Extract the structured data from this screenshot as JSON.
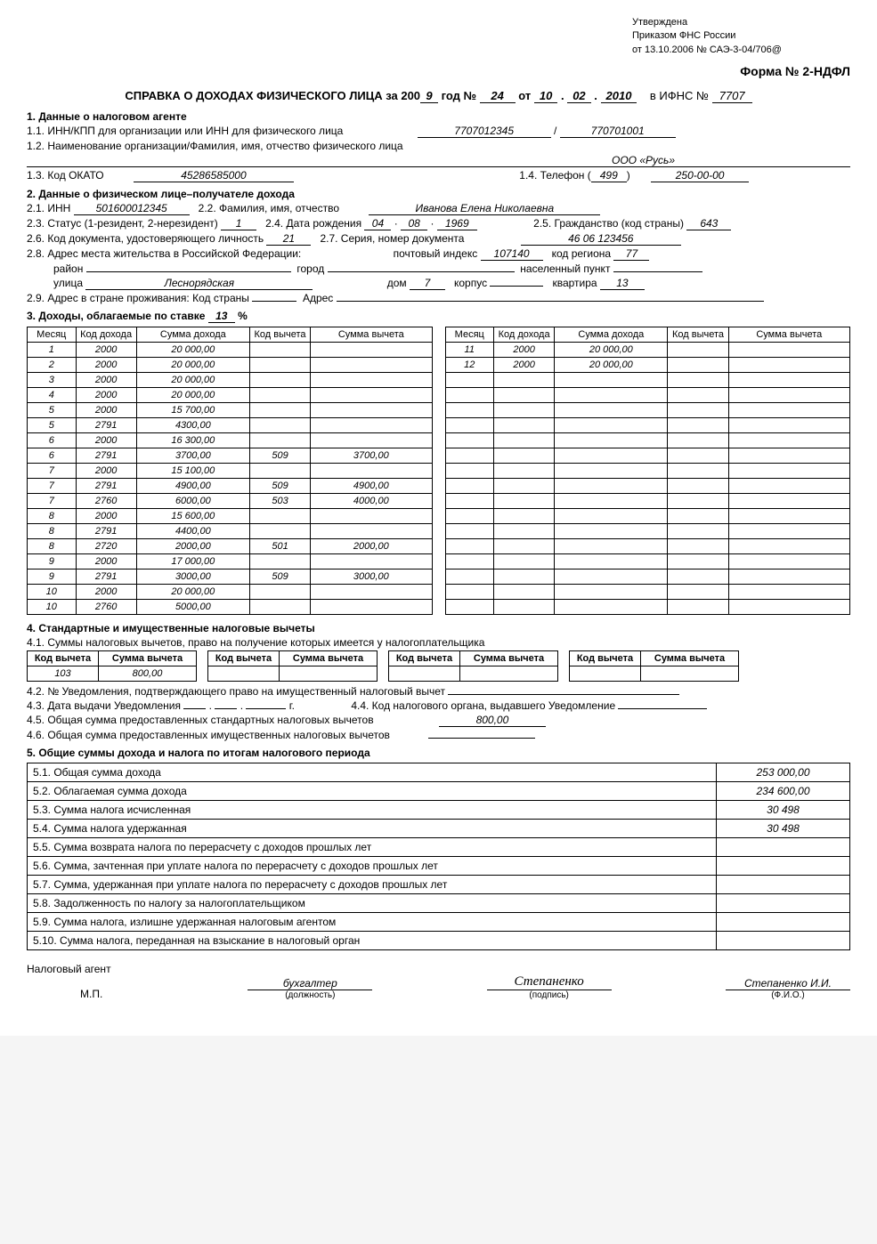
{
  "approval": {
    "l1": "Утверждена",
    "l2": "Приказом ФНС России",
    "l3": "от 13.10.2006 № САЭ-3-04/706@"
  },
  "form_number": "Форма № 2-НДФЛ",
  "title": {
    "prefix": "СПРАВКА О ДОХОДАХ ФИЗИЧЕСКОГО ЛИЦА за 200",
    "year_suffix": "9",
    "god_num_label": "год №",
    "num": "24",
    "ot": "от",
    "date_d": "10",
    "date_m": "02",
    "date_y": "2010",
    "ifns_label": "в ИФНС №",
    "ifns": "7707"
  },
  "s1": {
    "h": "1. Данные о налоговом агенте",
    "l11": "1.1. ИНН/КПП для организации или ИНН для физического лица",
    "inn": "7707012345",
    "slash": "/",
    "kpp": "770701001",
    "l12": "1.2. Наименование организации/Фамилия, имя, отчество физического лица",
    "org": "ООО «Русь»",
    "l13": "1.3. Код ОКАТО",
    "okato": "45286585000",
    "l14": "1.4. Телефон (",
    "tel_code": "499",
    "tel_close": ")",
    "tel_num": "250-00-00"
  },
  "s2": {
    "h": "2. Данные о физическом лице–получателе дохода",
    "l21": "2.1. ИНН",
    "inn": "501600012345",
    "l22": "2.2. Фамилия, имя, отчество",
    "fio": "Иванова Елена Николаевна",
    "l23": "2.3. Статус (1-резидент, 2-нерезидент)",
    "status": "1",
    "l24": "2.4. Дата рождения",
    "dob_d": "04",
    "dob_m": "08",
    "dob_y": "1969",
    "l25": "2.5. Гражданство (код страны)",
    "citizenship": "643",
    "l26": "2.6. Код документа, удостоверяющего личность",
    "doc_code": "21",
    "l27": "2.7. Серия, номер документа",
    "doc_num": "46 06 123456",
    "l28": "2.8. Адрес места жительства в Российской Федерации:",
    "post_label": "почтовый индекс",
    "postcode": "107140",
    "region_label": "код региона",
    "region": "77",
    "district_label": "район",
    "district": "",
    "city_label": "город",
    "city": "",
    "settlement_label": "населенный пункт",
    "settlement": "",
    "street_label": "улица",
    "street": "Леснорядская",
    "house_label": "дом",
    "house": "7",
    "corpus_label": "корпус",
    "corpus": "",
    "flat_label": "квартира",
    "flat": "13",
    "l29": "2.9. Адрес в стране проживания: Код страны",
    "addr_label": "Адрес"
  },
  "s3": {
    "h_prefix": "3. Доходы, облагаемые по ставке",
    "rate": "13",
    "h_suffix": "%",
    "headers": [
      "Месяц",
      "Код дохода",
      "Сумма дохода",
      "Код вычета",
      "Сумма вычета"
    ],
    "left": [
      {
        "m": "1",
        "kd": "2000",
        "sd": "20 000,00",
        "kv": "",
        "sv": ""
      },
      {
        "m": "2",
        "kd": "2000",
        "sd": "20 000,00",
        "kv": "",
        "sv": ""
      },
      {
        "m": "3",
        "kd": "2000",
        "sd": "20 000,00",
        "kv": "",
        "sv": ""
      },
      {
        "m": "4",
        "kd": "2000",
        "sd": "20 000,00",
        "kv": "",
        "sv": ""
      },
      {
        "m": "5",
        "kd": "2000",
        "sd": "15 700,00",
        "kv": "",
        "sv": ""
      },
      {
        "m": "5",
        "kd": "2791",
        "sd": "4300,00",
        "kv": "",
        "sv": ""
      },
      {
        "m": "6",
        "kd": "2000",
        "sd": "16 300,00",
        "kv": "",
        "sv": ""
      },
      {
        "m": "6",
        "kd": "2791",
        "sd": "3700,00",
        "kv": "509",
        "sv": "3700,00"
      },
      {
        "m": "7",
        "kd": "2000",
        "sd": "15 100,00",
        "kv": "",
        "sv": ""
      },
      {
        "m": "7",
        "kd": "2791",
        "sd": "4900,00",
        "kv": "509",
        "sv": "4900,00"
      },
      {
        "m": "7",
        "kd": "2760",
        "sd": "6000,00",
        "kv": "503",
        "sv": "4000,00"
      },
      {
        "m": "8",
        "kd": "2000",
        "sd": "15 600,00",
        "kv": "",
        "sv": ""
      },
      {
        "m": "8",
        "kd": "2791",
        "sd": "4400,00",
        "kv": "",
        "sv": ""
      },
      {
        "m": "8",
        "kd": "2720",
        "sd": "2000,00",
        "kv": "501",
        "sv": "2000,00"
      },
      {
        "m": "9",
        "kd": "2000",
        "sd": "17 000,00",
        "kv": "",
        "sv": ""
      },
      {
        "m": "9",
        "kd": "2791",
        "sd": "3000,00",
        "kv": "509",
        "sv": "3000,00"
      },
      {
        "m": "10",
        "kd": "2000",
        "sd": "20 000,00",
        "kv": "",
        "sv": ""
      },
      {
        "m": "10",
        "kd": "2760",
        "sd": "5000,00",
        "kv": "",
        "sv": ""
      }
    ],
    "right": [
      {
        "m": "11",
        "kd": "2000",
        "sd": "20 000,00",
        "kv": "",
        "sv": ""
      },
      {
        "m": "12",
        "kd": "2000",
        "sd": "20 000,00",
        "kv": "",
        "sv": ""
      },
      {
        "m": "",
        "kd": "",
        "sd": "",
        "kv": "",
        "sv": ""
      },
      {
        "m": "",
        "kd": "",
        "sd": "",
        "kv": "",
        "sv": ""
      },
      {
        "m": "",
        "kd": "",
        "sd": "",
        "kv": "",
        "sv": ""
      },
      {
        "m": "",
        "kd": "",
        "sd": "",
        "kv": "",
        "sv": ""
      },
      {
        "m": "",
        "kd": "",
        "sd": "",
        "kv": "",
        "sv": ""
      },
      {
        "m": "",
        "kd": "",
        "sd": "",
        "kv": "",
        "sv": ""
      },
      {
        "m": "",
        "kd": "",
        "sd": "",
        "kv": "",
        "sv": ""
      },
      {
        "m": "",
        "kd": "",
        "sd": "",
        "kv": "",
        "sv": ""
      },
      {
        "m": "",
        "kd": "",
        "sd": "",
        "kv": "",
        "sv": ""
      },
      {
        "m": "",
        "kd": "",
        "sd": "",
        "kv": "",
        "sv": ""
      },
      {
        "m": "",
        "kd": "",
        "sd": "",
        "kv": "",
        "sv": ""
      },
      {
        "m": "",
        "kd": "",
        "sd": "",
        "kv": "",
        "sv": ""
      },
      {
        "m": "",
        "kd": "",
        "sd": "",
        "kv": "",
        "sv": ""
      },
      {
        "m": "",
        "kd": "",
        "sd": "",
        "kv": "",
        "sv": ""
      },
      {
        "m": "",
        "kd": "",
        "sd": "",
        "kv": "",
        "sv": ""
      },
      {
        "m": "",
        "kd": "",
        "sd": "",
        "kv": "",
        "sv": ""
      }
    ]
  },
  "s4": {
    "h": "4. Стандартные и имущественные налоговые вычеты",
    "l41": "4.1. Суммы налоговых вычетов, право на получение которых имеется у налогоплательщика",
    "ded_cols": [
      "Код вычета",
      "Сумма вычета",
      "Код вычета",
      "Сумма вычета",
      "Код вычета",
      "Сумма вычета",
      "Код вычета",
      "Сумма вычета"
    ],
    "ded_code1": "103",
    "ded_sum1": "800,00",
    "l42": "4.2. № Уведомления, подтверждающего право на имущественный налоговый вычет",
    "l43": "4.3. Дата выдачи Уведомления",
    "l43_year": "г.",
    "l44": "4.4. Код налогового органа, выдавшего Уведомление",
    "l45": "4.5. Общая сумма предоставленных стандартных налоговых вычетов",
    "v45": "800,00",
    "l46": "4.6. Общая сумма предоставленных имущественных налоговых вычетов"
  },
  "s5": {
    "h": "5. Общие суммы дохода и налога по итогам налогового периода",
    "rows": [
      {
        "l": "5.1. Общая сумма дохода",
        "v": "253 000,00"
      },
      {
        "l": "5.2. Облагаемая сумма дохода",
        "v": "234 600,00"
      },
      {
        "l": "5.3. Сумма налога исчисленная",
        "v": "30 498"
      },
      {
        "l": "5.4. Сумма налога удержанная",
        "v": "30 498"
      },
      {
        "l": "5.5. Сумма возврата налога по перерасчету с доходов прошлых лет",
        "v": ""
      },
      {
        "l": "5.6. Сумма, зачтенная при уплате налога по перерасчету с доходов прошлых лет",
        "v": ""
      },
      {
        "l": "5.7. Сумма, удержанная при уплате налога по перерасчету с доходов прошлых лет",
        "v": ""
      },
      {
        "l": "5.8. Задолженность по налогу за налогоплательщиком",
        "v": ""
      },
      {
        "l": "5.9. Сумма налога, излишне удержанная налоговым агентом",
        "v": ""
      },
      {
        "l": "5.10. Сумма налога, переданная на взыскание в налоговый орган",
        "v": ""
      }
    ]
  },
  "sig": {
    "agent": "Налоговый агент",
    "mp": "М.П.",
    "position": "бухгалтер",
    "position_sub": "(должность)",
    "sign": "Степаненко",
    "sign_sub": "(подпись)",
    "fio": "Степаненко И.И.",
    "fio_sub": "(Ф.И.О.)"
  }
}
